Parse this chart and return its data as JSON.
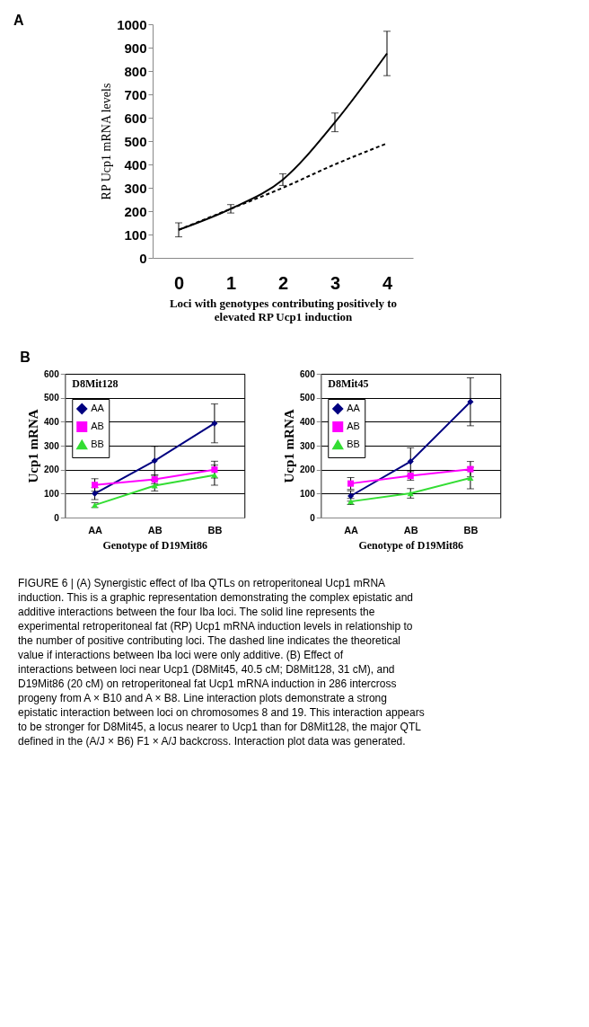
{
  "chart_data": [
    {
      "type": "line",
      "annotations": [
        "A"
      ],
      "xlabel": "Loci with genotypes contributing positively to\nelevated RP Ucp1 induction",
      "ylabel": "RP Ucp1 mRNA levels",
      "categories": [
        "0",
        "1",
        "2",
        "3",
        "4"
      ],
      "ylim": [
        0,
        1000
      ],
      "yticks": [
        0,
        100,
        200,
        300,
        400,
        500,
        600,
        700,
        800,
        900,
        1000
      ],
      "grid": false,
      "legend": false,
      "series": [
        {
          "color": "#000000",
          "line_style": "solid",
          "marker": "none",
          "values": [
            120,
            210,
            335,
            580,
            875
          ],
          "errors": [
            30,
            18,
            25,
            40,
            95
          ]
        },
        {
          "color": "#000000",
          "line_style": "dashed",
          "marker": "none",
          "values": [
            120,
            210,
            300,
            400,
            490
          ]
        }
      ]
    },
    {
      "type": "line",
      "title": "D8Mit128",
      "annotations": [
        "B"
      ],
      "xlabel": "Genotype of D19Mit86",
      "ylabel": "Ucp1 mRNA",
      "categories": [
        "AA",
        "AB",
        "BB"
      ],
      "ylim": [
        0,
        600
      ],
      "yticks": [
        0,
        100,
        200,
        300,
        400,
        500,
        600
      ],
      "grid": "y",
      "legend": "top left",
      "series": [
        {
          "name": "AA",
          "color": "#000080",
          "marker": "diamond",
          "line_style": "solid",
          "values": [
            100,
            237,
            393
          ],
          "errors": [
            25,
            60,
            81
          ]
        },
        {
          "name": "AB",
          "color": "#ff00ff",
          "marker": "square",
          "line_style": "solid",
          "values": [
            136,
            159,
            200
          ],
          "errors": [
            26,
            18,
            35
          ]
        },
        {
          "name": "BB",
          "color": "#33dd33",
          "marker": "triangle",
          "line_style": "solid",
          "values": [
            52,
            133,
            177
          ],
          "errors": [
            10,
            22,
            42
          ]
        }
      ]
    },
    {
      "type": "line",
      "title": "D8Mit45",
      "annotations": [
        "FIGURE 6 | (A) Synergistic effect of Iba QTLs on retroperitoneal Ucp1 mRNA induction. This is a graphic representation demonstrating the complex epistatic and additive interactions between the four Iba loci. The solid line represents the experimental retroperitoneal fat (RP) Ucp1 mRNA induction levels in relationship to the number of positive contributing loci. The dashed line indicates the theoretical value if interactions between Iba loci were only additive. (B) Effect of interactions between loci near Ucp1 (D8Mit45, 40.5 cM; D8Mit128, 31 cM), and D19Mit86 (20 cM) on retroperitoneal fat Ucp1 mRNA induction in 286 intercross progeny from A × B10 and A × B8. Line interaction plots demonstrate a strong epistatic interaction between loci on chromosomes 8 and 19. This interaction appears to be stronger for D8Mit45, a locus nearer to Ucp1 than for D8Mit128, the major QTL defined in the (A/J × B6) F1 × A/J backcross. Interaction plot data was generated."
      ],
      "xlabel": "Genotype of D19Mit86",
      "ylabel": "Ucp1 mRNA",
      "categories": [
        "AA",
        "AB",
        "BB"
      ],
      "ylim": [
        0,
        600
      ],
      "yticks": [
        0,
        100,
        200,
        300,
        400,
        500,
        600
      ],
      "grid": "y",
      "legend": "top left",
      "series": [
        {
          "name": "AA",
          "color": "#000080",
          "marker": "diamond",
          "line_style": "solid",
          "values": [
            90,
            234,
            483
          ],
          "errors": [
            22,
            57,
            100
          ]
        },
        {
          "name": "AB",
          "color": "#ff00ff",
          "marker": "square",
          "line_style": "solid",
          "values": [
            142,
            174,
            202
          ],
          "errors": [
            25,
            18,
            32
          ]
        },
        {
          "name": "BB",
          "color": "#33dd33",
          "marker": "triangle",
          "line_style": "solid",
          "values": [
            67,
            101,
            165
          ],
          "errors": [
            13,
            20,
            45
          ]
        }
      ]
    }
  ]
}
